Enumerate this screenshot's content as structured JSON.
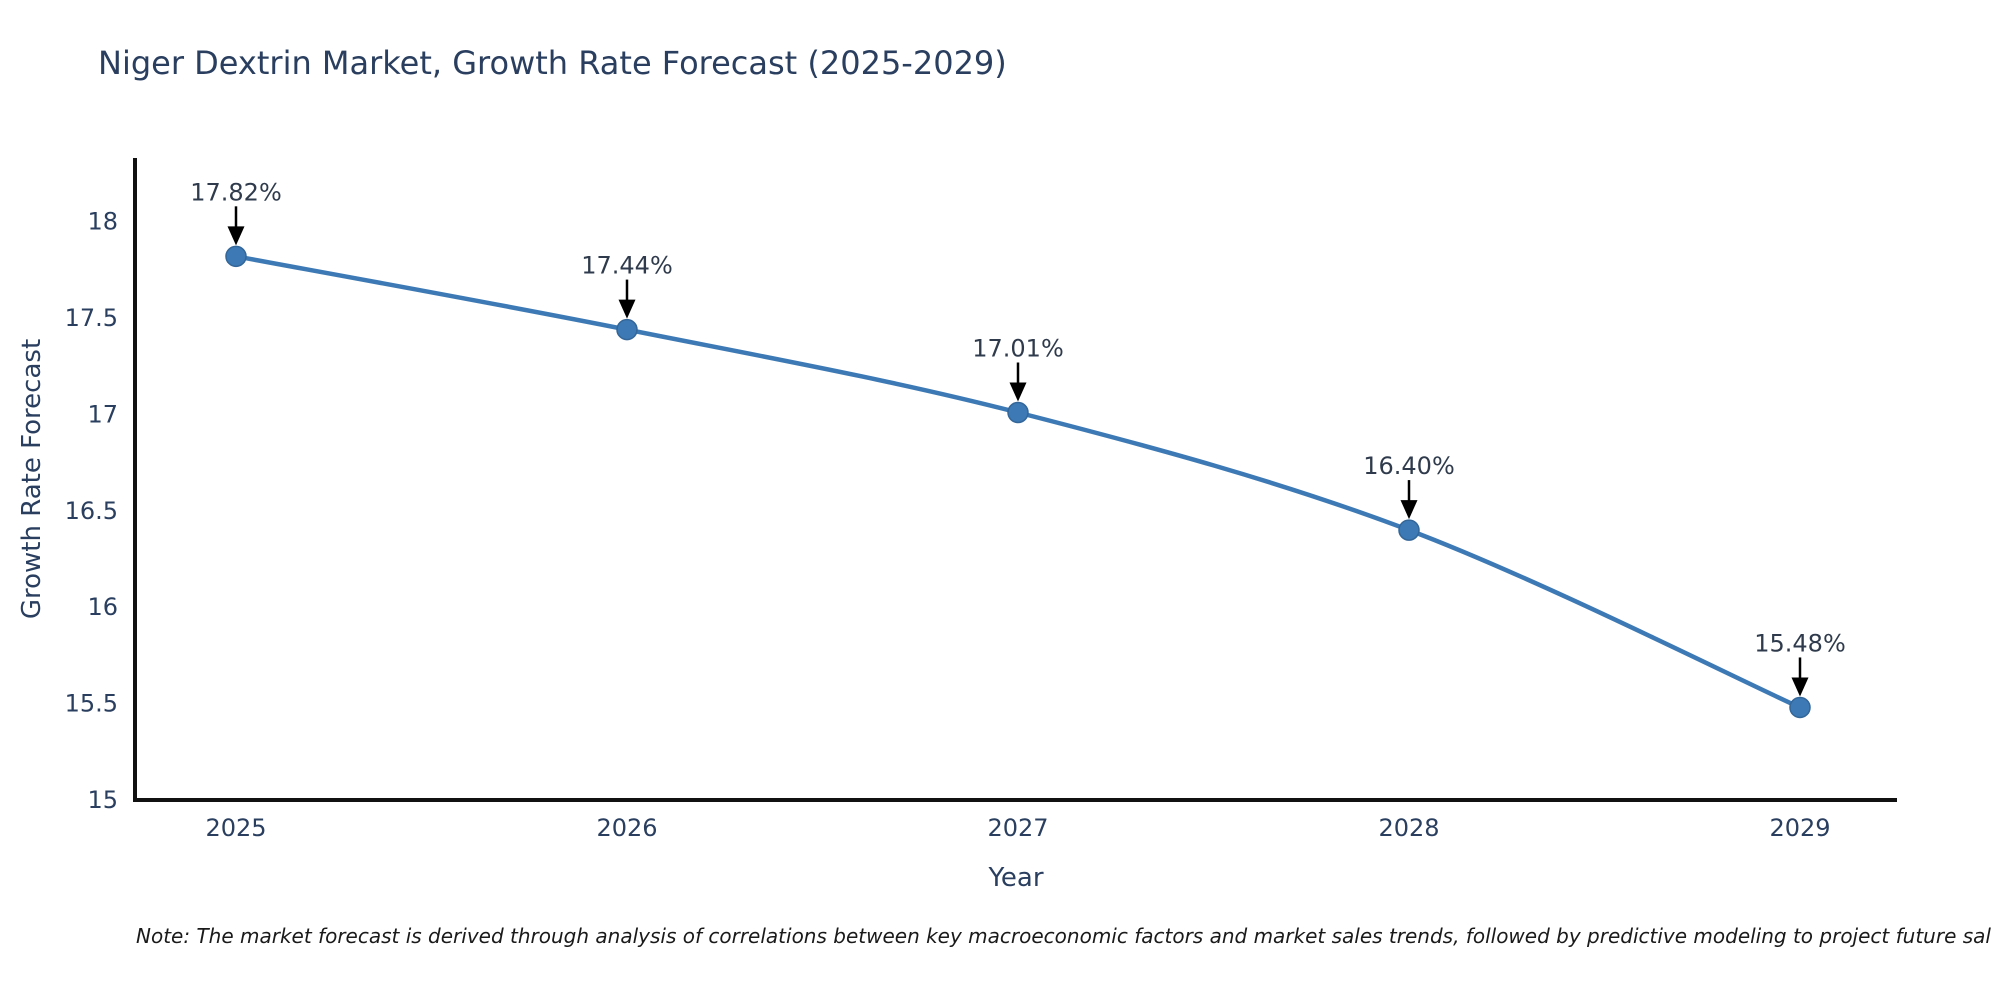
{
  "title": "Niger Dextrin Market, Growth Rate Forecast (2025-2029)",
  "note": "Note: The market forecast is derived through analysis of correlations between key macroeconomic factors and market sales trends, followed by predictive modeling to project future sal",
  "colors": {
    "line": "#3d7ab5",
    "marker_fill": "#3d7ab5",
    "marker_edge": "#336699",
    "axis_line": "#111111",
    "title_text": "#2a3f5f",
    "tick_text": "#2a3f5f",
    "axis_title_text": "#2a3f5f",
    "annotation_text": "#2f3b4c",
    "arrow": "#000000",
    "note_text": "#1a1a1a",
    "background": "#ffffff"
  },
  "chart_data": {
    "type": "line",
    "title": "Niger Dextrin Market, Growth Rate Forecast (2025-2029)",
    "xlabel": "Year",
    "ylabel": "Growth Rate Forecast",
    "x": [
      2025,
      2026,
      2027,
      2028,
      2029
    ],
    "categories": [
      "2025",
      "2026",
      "2027",
      "2028",
      "2029"
    ],
    "series": [
      {
        "name": "Growth Rate Forecast",
        "values": [
          17.82,
          17.44,
          17.01,
          16.4,
          15.48
        ]
      }
    ],
    "point_labels": [
      "17.82%",
      "17.44%",
      "17.01%",
      "16.40%",
      "15.48%"
    ],
    "ylim": [
      15,
      18.33
    ],
    "yticks": [
      15,
      15.5,
      16,
      16.5,
      17,
      17.5,
      18
    ],
    "ytick_labels": [
      "15",
      "15.5",
      "16",
      "16.5",
      "17",
      "17.5",
      "18"
    ],
    "grid": false,
    "legend": false,
    "marker": "circle",
    "line_smooth": true,
    "annotations_arrow": true
  }
}
